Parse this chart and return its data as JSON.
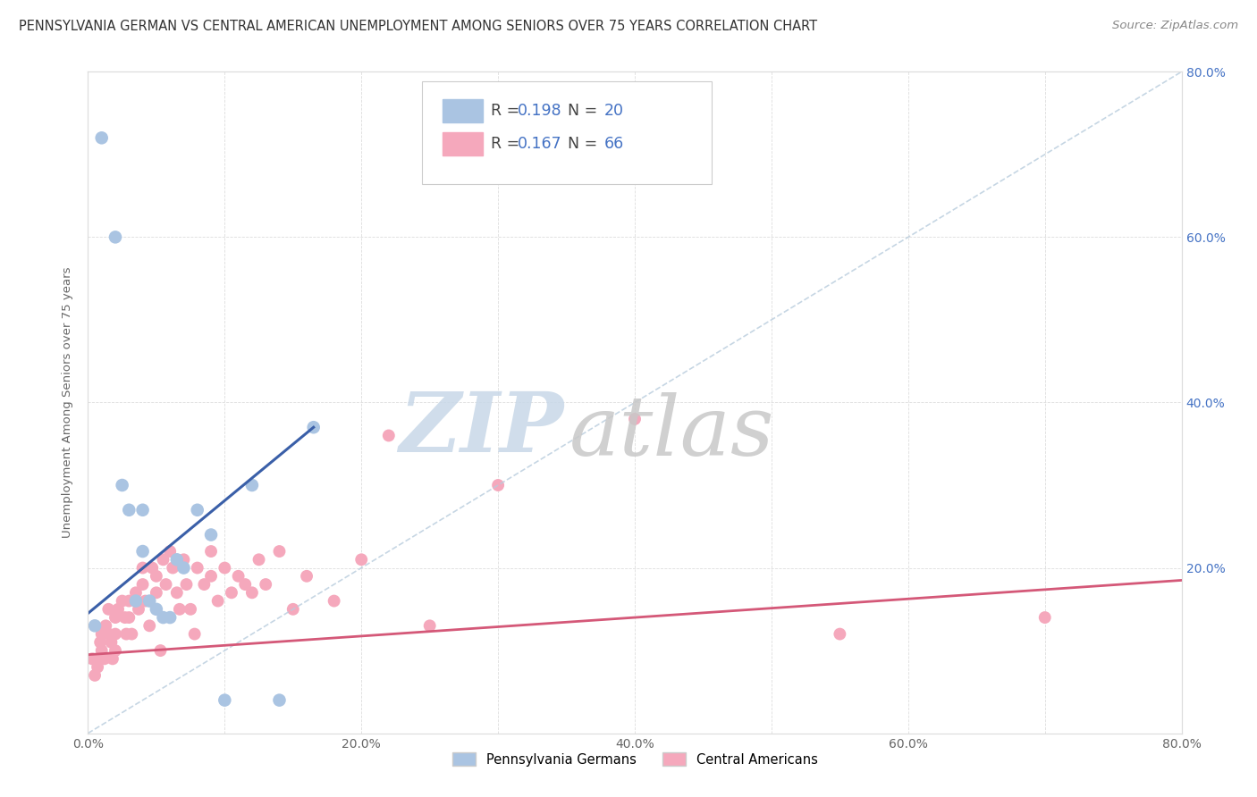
{
  "title": "PENNSYLVANIA GERMAN VS CENTRAL AMERICAN UNEMPLOYMENT AMONG SENIORS OVER 75 YEARS CORRELATION CHART",
  "source": "Source: ZipAtlas.com",
  "ylabel": "Unemployment Among Seniors over 75 years",
  "xlim": [
    0,
    0.8
  ],
  "ylim": [
    0,
    0.8
  ],
  "xtick_labels": [
    "0.0%",
    "",
    "20.0%",
    "",
    "40.0%",
    "",
    "60.0%",
    "",
    "80.0%"
  ],
  "xtick_vals": [
    0.0,
    0.1,
    0.2,
    0.3,
    0.4,
    0.5,
    0.6,
    0.7,
    0.8
  ],
  "ytick_vals": [
    0.0,
    0.2,
    0.4,
    0.6,
    0.8
  ],
  "ytick_labels_right": [
    "",
    "20.0%",
    "40.0%",
    "60.0%",
    "80.0%"
  ],
  "blue_R": "0.198",
  "blue_N": "20",
  "pink_R": "0.167",
  "pink_N": "66",
  "blue_scatter_color": "#aac4e2",
  "blue_line_color": "#3a5fa8",
  "blue_dash_color": "#b8ccdd",
  "pink_scatter_color": "#f5a8bc",
  "pink_line_color": "#d45878",
  "right_axis_color": "#4472c4",
  "watermark_zip_color": "#c8d8e8",
  "watermark_atlas_color": "#c8c8c8",
  "legend_border_color": "#cccccc",
  "grid_color": "#dddddd",
  "title_color": "#333333",
  "source_color": "#888888",
  "ylabel_color": "#666666",
  "blue_scatter_x": [
    0.005,
    0.01,
    0.02,
    0.025,
    0.03,
    0.035,
    0.04,
    0.04,
    0.045,
    0.05,
    0.055,
    0.06,
    0.065,
    0.07,
    0.08,
    0.09,
    0.1,
    0.12,
    0.14,
    0.165
  ],
  "blue_scatter_y": [
    0.13,
    0.72,
    0.6,
    0.3,
    0.27,
    0.16,
    0.27,
    0.22,
    0.16,
    0.15,
    0.14,
    0.14,
    0.21,
    0.2,
    0.27,
    0.24,
    0.04,
    0.3,
    0.04,
    0.37
  ],
  "pink_scatter_x": [
    0.003,
    0.005,
    0.007,
    0.008,
    0.009,
    0.01,
    0.01,
    0.012,
    0.013,
    0.015,
    0.015,
    0.017,
    0.018,
    0.02,
    0.02,
    0.02,
    0.022,
    0.025,
    0.027,
    0.028,
    0.03,
    0.03,
    0.032,
    0.035,
    0.037,
    0.04,
    0.04,
    0.042,
    0.045,
    0.047,
    0.05,
    0.05,
    0.053,
    0.055,
    0.057,
    0.06,
    0.062,
    0.065,
    0.067,
    0.07,
    0.072,
    0.075,
    0.078,
    0.08,
    0.085,
    0.09,
    0.09,
    0.095,
    0.1,
    0.105,
    0.11,
    0.115,
    0.12,
    0.125,
    0.13,
    0.14,
    0.15,
    0.16,
    0.18,
    0.2,
    0.22,
    0.25,
    0.3,
    0.4,
    0.55,
    0.7
  ],
  "pink_scatter_y": [
    0.09,
    0.07,
    0.08,
    0.09,
    0.11,
    0.12,
    0.1,
    0.09,
    0.13,
    0.12,
    0.15,
    0.11,
    0.09,
    0.14,
    0.12,
    0.1,
    0.15,
    0.16,
    0.14,
    0.12,
    0.16,
    0.14,
    0.12,
    0.17,
    0.15,
    0.2,
    0.18,
    0.16,
    0.13,
    0.2,
    0.19,
    0.17,
    0.1,
    0.21,
    0.18,
    0.22,
    0.2,
    0.17,
    0.15,
    0.21,
    0.18,
    0.15,
    0.12,
    0.2,
    0.18,
    0.22,
    0.19,
    0.16,
    0.2,
    0.17,
    0.19,
    0.18,
    0.17,
    0.21,
    0.18,
    0.22,
    0.15,
    0.19,
    0.16,
    0.21,
    0.36,
    0.13,
    0.3,
    0.38,
    0.12,
    0.14
  ],
  "blue_trendline_x": [
    0.0,
    0.165
  ],
  "blue_trendline_y": [
    0.145,
    0.37
  ],
  "blue_dashline_x": [
    0.0,
    0.8
  ],
  "blue_dashline_y": [
    0.0,
    0.8
  ],
  "pink_trendline_x": [
    0.0,
    0.8
  ],
  "pink_trendline_y": [
    0.095,
    0.185
  ],
  "title_fontsize": 10.5,
  "source_fontsize": 9.5,
  "axis_label_fontsize": 9.5,
  "tick_fontsize": 10,
  "legend_fontsize": 12.5
}
